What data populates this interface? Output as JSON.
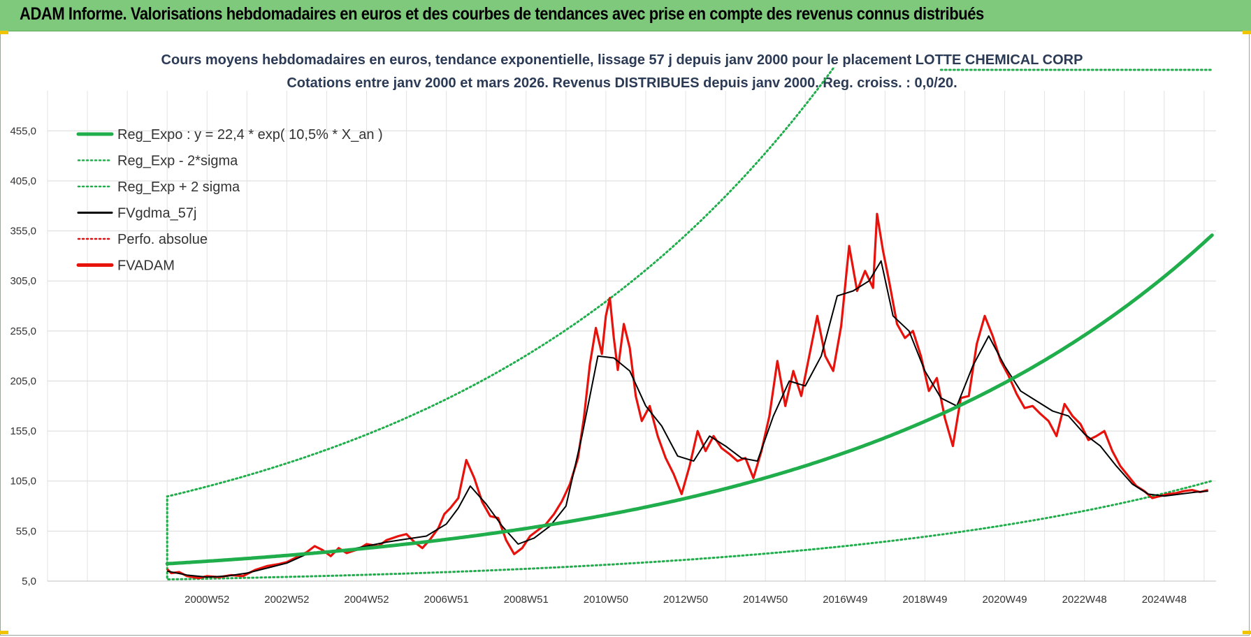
{
  "header": {
    "title": "ADAM Informe. Valorisations hebdomadaires en euros et des courbes de tendances avec prise en compte des revenus connus distribués",
    "background": "#7ec97b"
  },
  "chart_data": {
    "type": "line",
    "title": "Cours moyens hebdomadaires en euros, tendance exponentielle, lissage 57 j depuis janv 2000 pour le placement LOTTE CHEMICAL CORP",
    "subtitle": "Cotations entre janv 2000 et mars 2026. Revenus DISTRIBUES depuis janv 2000. Reg. croiss. : 0,0/20.",
    "xlabel": "",
    "ylabel": "",
    "ylim": [
      5,
      495
    ],
    "y_ticks": [
      "5,0",
      "55,0",
      "105,0",
      "155,0",
      "205,0",
      "255,0",
      "305,0",
      "355,0",
      "405,0",
      "455,0"
    ],
    "x_ticks": [
      "2000W52",
      "2002W52",
      "2004W52",
      "2006W51",
      "2008W51",
      "2010W50",
      "2012W50",
      "2014W50",
      "2016W49",
      "2018W49",
      "2020W49",
      "2022W48",
      "2024W48"
    ],
    "x_range": [
      1997.0,
      2026.3
    ],
    "grid": true,
    "legend_position": "top-left",
    "legend": [
      {
        "label": "Reg_Expo : y = 22,4 * exp( 10,5% *  X_an )",
        "color": "#1fae4b",
        "style": "solid-thick"
      },
      {
        "label": "Reg_Exp - 2*sigma",
        "color": "#1fae4b",
        "style": "dotted"
      },
      {
        "label": "Reg_Exp + 2 sigma",
        "color": "#1fae4b",
        "style": "dotted"
      },
      {
        "label": "FVgdma_57j",
        "color": "#000000",
        "style": "solid"
      },
      {
        "label": "Perfo. absolue",
        "color": "#e01010",
        "style": "dotted"
      },
      {
        "label": "FVADAM",
        "color": "#e8120c",
        "style": "solid-thick"
      }
    ],
    "regression": {
      "a": 22.4,
      "rate": 0.105,
      "start": 2000.0,
      "end": 2026.2,
      "lower_factor": 0.3,
      "upper_factor": 4.0
    },
    "series": [
      {
        "name": "FVADAM",
        "color": "#e8120c",
        "x": [
          2000.0,
          2000.1,
          2000.3,
          2000.5,
          2000.8,
          2001.0,
          2001.3,
          2001.6,
          2001.9,
          2002.2,
          2002.5,
          2002.8,
          2003.0,
          2003.2,
          2003.5,
          2003.7,
          2003.9,
          2004.1,
          2004.3,
          2004.5,
          2004.8,
          2005.0,
          2005.3,
          2005.5,
          2005.8,
          2006.0,
          2006.2,
          2006.4,
          2006.6,
          2006.8,
          2006.95,
          2007.1,
          2007.3,
          2007.5,
          2007.7,
          2007.9,
          2008.1,
          2008.3,
          2008.5,
          2008.7,
          2008.9,
          2009.1,
          2009.3,
          2009.5,
          2009.7,
          2009.9,
          2010.1,
          2010.3,
          2010.45,
          2010.6,
          2010.75,
          2010.9,
          2011.0,
          2011.1,
          2011.2,
          2011.3,
          2011.45,
          2011.6,
          2011.75,
          2011.9,
          2012.1,
          2012.3,
          2012.5,
          2012.7,
          2012.9,
          2013.1,
          2013.3,
          2013.5,
          2013.7,
          2013.9,
          2014.1,
          2014.3,
          2014.5,
          2014.7,
          2014.9,
          2015.1,
          2015.3,
          2015.5,
          2015.7,
          2015.9,
          2016.1,
          2016.3,
          2016.5,
          2016.7,
          2016.9,
          2017.1,
          2017.3,
          2017.5,
          2017.7,
          2017.8,
          2017.95,
          2018.1,
          2018.3,
          2018.5,
          2018.7,
          2018.9,
          2019.1,
          2019.3,
          2019.5,
          2019.7,
          2019.9,
          2020.1,
          2020.3,
          2020.5,
          2020.7,
          2020.9,
          2021.1,
          2021.3,
          2021.5,
          2021.7,
          2021.9,
          2022.1,
          2022.3,
          2022.5,
          2022.7,
          2022.9,
          2023.1,
          2023.3,
          2023.5,
          2023.7,
          2023.9,
          2024.1,
          2024.3,
          2024.5,
          2024.7,
          2024.9,
          2025.1,
          2025.3,
          2025.5,
          2025.7,
          2025.9,
          2026.1
        ],
        "values": [
          17,
          13,
          14,
          10,
          8,
          10,
          9,
          11,
          10,
          16,
          20,
          22,
          24,
          28,
          34,
          40,
          36,
          30,
          38,
          33,
          37,
          42,
          40,
          46,
          50,
          52,
          44,
          38,
          47,
          58,
          72,
          78,
          88,
          126,
          108,
          84,
          70,
          68,
          46,
          32,
          38,
          50,
          56,
          62,
          72,
          85,
          102,
          128,
          168,
          222,
          258,
          232,
          270,
          288,
          248,
          216,
          262,
          238,
          190,
          165,
          180,
          150,
          128,
          112,
          92,
          120,
          155,
          135,
          150,
          138,
          132,
          125,
          128,
          108,
          135,
          170,
          225,
          180,
          215,
          190,
          230,
          270,
          230,
          215,
          260,
          340,
          295,
          315,
          298,
          372,
          335,
          305,
          262,
          248,
          255,
          230,
          195,
          208,
          168,
          140,
          188,
          190,
          242,
          270,
          250,
          225,
          210,
          192,
          178,
          180,
          172,
          165,
          150,
          182,
          170,
          162,
          146,
          150,
          155,
          135,
          120,
          110,
          100,
          95,
          88,
          90,
          92,
          93,
          95,
          96,
          94,
          96
        ]
      },
      {
        "name": "FVgdma_57j",
        "color": "#000000",
        "x": [
          2000.0,
          2000.5,
          2001.0,
          2001.5,
          2002.0,
          2002.5,
          2003.0,
          2003.5,
          2004.0,
          2004.5,
          2005.0,
          2005.5,
          2006.0,
          2006.5,
          2007.0,
          2007.3,
          2007.6,
          2008.0,
          2008.4,
          2008.8,
          2009.2,
          2009.6,
          2010.0,
          2010.4,
          2010.8,
          2011.2,
          2011.6,
          2012.0,
          2012.4,
          2012.8,
          2013.2,
          2013.6,
          2014.0,
          2014.4,
          2014.8,
          2015.2,
          2015.6,
          2016.0,
          2016.4,
          2016.8,
          2017.2,
          2017.6,
          2017.9,
          2018.2,
          2018.6,
          2019.0,
          2019.4,
          2019.8,
          2020.2,
          2020.6,
          2021.0,
          2021.4,
          2021.8,
          2022.2,
          2022.6,
          2023.0,
          2023.4,
          2023.8,
          2024.2,
          2024.6,
          2025.0,
          2025.4,
          2025.8,
          2026.1
        ],
        "values": [
          15,
          11,
          9,
          10,
          13,
          18,
          23,
          32,
          34,
          36,
          40,
          44,
          47,
          50,
          62,
          78,
          100,
          82,
          60,
          42,
          48,
          60,
          80,
          150,
          230,
          228,
          215,
          180,
          160,
          130,
          125,
          150,
          140,
          128,
          125,
          170,
          205,
          200,
          230,
          290,
          295,
          305,
          325,
          270,
          255,
          215,
          188,
          180,
          220,
          250,
          220,
          195,
          185,
          175,
          170,
          152,
          140,
          120,
          102,
          92,
          90,
          92,
          94,
          95
        ]
      }
    ]
  }
}
